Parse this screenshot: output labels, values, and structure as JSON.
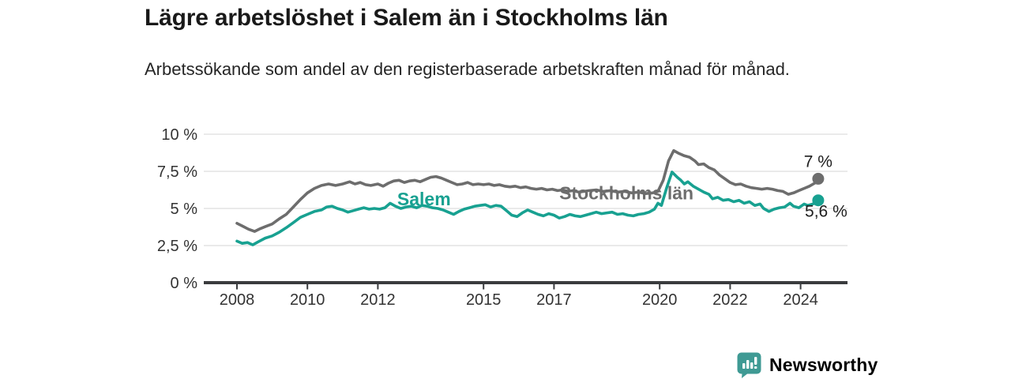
{
  "chart_data": {
    "type": "line",
    "title": "Lägre arbetslöshet i Salem än i Stockholms län",
    "subtitle": "Arbetssökande som andel av den registerbaserade arbetskraften månad för månad.",
    "unit": "%",
    "grid": "horizontal",
    "legend": "inline-labels",
    "x_axis": {
      "range": [
        2007.05,
        2025.35
      ],
      "ticks": [
        {
          "value": 2008,
          "label": "2008"
        },
        {
          "value": 2010,
          "label": "2010"
        },
        {
          "value": 2012,
          "label": "2012"
        },
        {
          "value": 2015,
          "label": "2015"
        },
        {
          "value": 2017,
          "label": "2017"
        },
        {
          "value": 2020,
          "label": "2020"
        },
        {
          "value": 2022,
          "label": "2022"
        },
        {
          "value": 2024,
          "label": "2024"
        }
      ]
    },
    "y_axis": {
      "range": [
        0,
        10.6
      ],
      "ticks": [
        {
          "value": 0,
          "label": "0 %"
        },
        {
          "value": 2.5,
          "label": "2,5 %"
        },
        {
          "value": 5,
          "label": "5 %"
        },
        {
          "value": 7.5,
          "label": "7,5 %"
        },
        {
          "value": 10,
          "label": "10 %"
        }
      ]
    },
    "series": [
      {
        "id": "stockholms-lan",
        "name": "Stockholms län",
        "color": "#6d6d6d",
        "end_label": "7 %",
        "end_label_position": "above",
        "label_pos": {
          "x": 2017.15,
          "y": 5.62
        },
        "points": [
          [
            2008.0,
            4.0
          ],
          [
            2008.17,
            3.8
          ],
          [
            2008.33,
            3.6
          ],
          [
            2008.5,
            3.45
          ],
          [
            2008.67,
            3.65
          ],
          [
            2008.83,
            3.8
          ],
          [
            2009.0,
            3.95
          ],
          [
            2009.2,
            4.3
          ],
          [
            2009.4,
            4.6
          ],
          [
            2009.6,
            5.1
          ],
          [
            2009.8,
            5.6
          ],
          [
            2010.0,
            6.05
          ],
          [
            2010.2,
            6.35
          ],
          [
            2010.4,
            6.55
          ],
          [
            2010.6,
            6.65
          ],
          [
            2010.8,
            6.55
          ],
          [
            2011.0,
            6.65
          ],
          [
            2011.2,
            6.8
          ],
          [
            2011.35,
            6.65
          ],
          [
            2011.5,
            6.75
          ],
          [
            2011.65,
            6.6
          ],
          [
            2011.8,
            6.55
          ],
          [
            2012.0,
            6.65
          ],
          [
            2012.15,
            6.5
          ],
          [
            2012.3,
            6.7
          ],
          [
            2012.45,
            6.85
          ],
          [
            2012.6,
            6.9
          ],
          [
            2012.75,
            6.75
          ],
          [
            2012.9,
            6.85
          ],
          [
            2013.05,
            6.9
          ],
          [
            2013.2,
            6.8
          ],
          [
            2013.35,
            6.95
          ],
          [
            2013.5,
            7.1
          ],
          [
            2013.65,
            7.15
          ],
          [
            2013.8,
            7.05
          ],
          [
            2013.95,
            6.9
          ],
          [
            2014.1,
            6.75
          ],
          [
            2014.25,
            6.6
          ],
          [
            2014.4,
            6.65
          ],
          [
            2014.55,
            6.75
          ],
          [
            2014.7,
            6.6
          ],
          [
            2014.85,
            6.65
          ],
          [
            2015.0,
            6.6
          ],
          [
            2015.15,
            6.65
          ],
          [
            2015.3,
            6.55
          ],
          [
            2015.45,
            6.6
          ],
          [
            2015.6,
            6.5
          ],
          [
            2015.75,
            6.45
          ],
          [
            2015.9,
            6.5
          ],
          [
            2016.05,
            6.4
          ],
          [
            2016.2,
            6.45
          ],
          [
            2016.35,
            6.35
          ],
          [
            2016.5,
            6.3
          ],
          [
            2016.65,
            6.35
          ],
          [
            2016.8,
            6.25
          ],
          [
            2016.95,
            6.3
          ],
          [
            2017.1,
            6.2
          ],
          [
            2017.25,
            6.25
          ],
          [
            2017.4,
            6.15
          ],
          [
            2017.55,
            6.2
          ],
          [
            2017.7,
            6.1
          ],
          [
            2017.85,
            6.15
          ],
          [
            2018.0,
            6.2
          ],
          [
            2018.2,
            6.25
          ],
          [
            2018.4,
            6.15
          ],
          [
            2018.6,
            6.2
          ],
          [
            2018.8,
            6.1
          ],
          [
            2019.0,
            6.15
          ],
          [
            2019.2,
            6.05
          ],
          [
            2019.4,
            6.1
          ],
          [
            2019.6,
            6.0
          ],
          [
            2019.8,
            6.05
          ],
          [
            2019.95,
            6.15
          ],
          [
            2020.1,
            6.9
          ],
          [
            2020.25,
            8.2
          ],
          [
            2020.4,
            8.9
          ],
          [
            2020.55,
            8.7
          ],
          [
            2020.7,
            8.55
          ],
          [
            2020.85,
            8.45
          ],
          [
            2021.0,
            8.2
          ],
          [
            2021.1,
            7.95
          ],
          [
            2021.25,
            8.0
          ],
          [
            2021.4,
            7.75
          ],
          [
            2021.55,
            7.6
          ],
          [
            2021.7,
            7.25
          ],
          [
            2021.85,
            7.0
          ],
          [
            2022.0,
            6.75
          ],
          [
            2022.15,
            6.6
          ],
          [
            2022.3,
            6.65
          ],
          [
            2022.45,
            6.5
          ],
          [
            2022.6,
            6.4
          ],
          [
            2022.75,
            6.35
          ],
          [
            2022.9,
            6.3
          ],
          [
            2023.05,
            6.35
          ],
          [
            2023.2,
            6.3
          ],
          [
            2023.35,
            6.2
          ],
          [
            2023.5,
            6.15
          ],
          [
            2023.65,
            5.95
          ],
          [
            2023.8,
            6.05
          ],
          [
            2023.95,
            6.2
          ],
          [
            2024.1,
            6.35
          ],
          [
            2024.25,
            6.5
          ],
          [
            2024.4,
            6.7
          ],
          [
            2024.5,
            7.0
          ]
        ]
      },
      {
        "id": "salem",
        "name": "Salem",
        "color": "#18a191",
        "end_label": "5,6 %",
        "end_label_position": "below",
        "label_pos": {
          "x": 2012.55,
          "y": 5.2
        },
        "points": [
          [
            2008.0,
            2.8
          ],
          [
            2008.15,
            2.65
          ],
          [
            2008.3,
            2.7
          ],
          [
            2008.45,
            2.55
          ],
          [
            2008.6,
            2.75
          ],
          [
            2008.8,
            3.0
          ],
          [
            2009.0,
            3.15
          ],
          [
            2009.2,
            3.4
          ],
          [
            2009.4,
            3.7
          ],
          [
            2009.6,
            4.05
          ],
          [
            2009.8,
            4.4
          ],
          [
            2010.0,
            4.6
          ],
          [
            2010.2,
            4.8
          ],
          [
            2010.4,
            4.9
          ],
          [
            2010.55,
            5.1
          ],
          [
            2010.7,
            5.15
          ],
          [
            2010.85,
            5.0
          ],
          [
            2011.0,
            4.9
          ],
          [
            2011.15,
            4.75
          ],
          [
            2011.3,
            4.85
          ],
          [
            2011.45,
            4.95
          ],
          [
            2011.6,
            5.05
          ],
          [
            2011.75,
            4.95
          ],
          [
            2011.9,
            5.0
          ],
          [
            2012.05,
            4.95
          ],
          [
            2012.2,
            5.05
          ],
          [
            2012.35,
            5.35
          ],
          [
            2012.5,
            5.15
          ],
          [
            2012.65,
            5.0
          ],
          [
            2012.8,
            5.1
          ],
          [
            2012.95,
            5.15
          ],
          [
            2013.1,
            5.05
          ],
          [
            2013.25,
            5.2
          ],
          [
            2013.4,
            5.15
          ],
          [
            2013.55,
            5.05
          ],
          [
            2013.7,
            5.0
          ],
          [
            2013.85,
            4.9
          ],
          [
            2014.0,
            4.75
          ],
          [
            2014.15,
            4.6
          ],
          [
            2014.3,
            4.8
          ],
          [
            2014.45,
            4.95
          ],
          [
            2014.6,
            5.05
          ],
          [
            2014.75,
            5.15
          ],
          [
            2014.9,
            5.2
          ],
          [
            2015.05,
            5.25
          ],
          [
            2015.2,
            5.1
          ],
          [
            2015.35,
            5.2
          ],
          [
            2015.5,
            5.15
          ],
          [
            2015.65,
            4.85
          ],
          [
            2015.8,
            4.55
          ],
          [
            2015.95,
            4.45
          ],
          [
            2016.1,
            4.7
          ],
          [
            2016.25,
            4.9
          ],
          [
            2016.4,
            4.75
          ],
          [
            2016.55,
            4.6
          ],
          [
            2016.7,
            4.5
          ],
          [
            2016.85,
            4.65
          ],
          [
            2017.0,
            4.55
          ],
          [
            2017.15,
            4.35
          ],
          [
            2017.3,
            4.45
          ],
          [
            2017.45,
            4.6
          ],
          [
            2017.6,
            4.5
          ],
          [
            2017.75,
            4.45
          ],
          [
            2017.9,
            4.55
          ],
          [
            2018.05,
            4.65
          ],
          [
            2018.2,
            4.75
          ],
          [
            2018.35,
            4.65
          ],
          [
            2018.5,
            4.7
          ],
          [
            2018.65,
            4.75
          ],
          [
            2018.8,
            4.6
          ],
          [
            2018.95,
            4.65
          ],
          [
            2019.1,
            4.55
          ],
          [
            2019.25,
            4.5
          ],
          [
            2019.4,
            4.6
          ],
          [
            2019.55,
            4.65
          ],
          [
            2019.7,
            4.75
          ],
          [
            2019.85,
            4.95
          ],
          [
            2019.95,
            5.35
          ],
          [
            2020.05,
            5.2
          ],
          [
            2020.2,
            6.4
          ],
          [
            2020.35,
            7.45
          ],
          [
            2020.5,
            7.1
          ],
          [
            2020.6,
            6.9
          ],
          [
            2020.7,
            6.65
          ],
          [
            2020.8,
            6.8
          ],
          [
            2020.95,
            6.5
          ],
          [
            2021.1,
            6.3
          ],
          [
            2021.25,
            6.1
          ],
          [
            2021.4,
            5.95
          ],
          [
            2021.5,
            5.65
          ],
          [
            2021.65,
            5.75
          ],
          [
            2021.8,
            5.55
          ],
          [
            2021.95,
            5.6
          ],
          [
            2022.1,
            5.45
          ],
          [
            2022.25,
            5.55
          ],
          [
            2022.4,
            5.35
          ],
          [
            2022.55,
            5.45
          ],
          [
            2022.7,
            5.2
          ],
          [
            2022.85,
            5.3
          ],
          [
            2022.95,
            5.0
          ],
          [
            2023.1,
            4.8
          ],
          [
            2023.25,
            4.95
          ],
          [
            2023.4,
            5.05
          ],
          [
            2023.55,
            5.1
          ],
          [
            2023.7,
            5.35
          ],
          [
            2023.8,
            5.15
          ],
          [
            2023.95,
            5.05
          ],
          [
            2024.1,
            5.3
          ],
          [
            2024.2,
            5.2
          ],
          [
            2024.35,
            5.3
          ],
          [
            2024.5,
            5.55
          ]
        ]
      }
    ]
  },
  "colors": {
    "salem": "#18a191",
    "stockholms_lan": "#6d6d6d",
    "grid": "#dedede",
    "axis": "#3a3c3e",
    "annotation": "#1d1d1d",
    "brand": "#3f9a94"
  },
  "footer": {
    "brand": "Newsworthy",
    "logo_icon": "bar-chart-speech-bubble-icon"
  }
}
